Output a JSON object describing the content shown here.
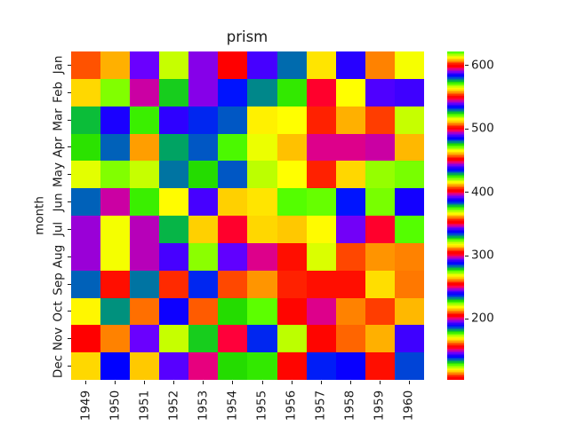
{
  "figure": {
    "background": "#ffffff",
    "text_color": "#1a1a1a"
  },
  "chart_data": {
    "type": "heatmap",
    "title": "prism",
    "xlabel": "",
    "ylabel": "month",
    "colormap": "prism",
    "grid": false,
    "vmin": 104,
    "vmax": 622,
    "rows": [
      "Jan",
      "Feb",
      "Mar",
      "Apr",
      "May",
      "Jun",
      "Jul",
      "Aug",
      "Sep",
      "Oct",
      "Nov",
      "Dec"
    ],
    "columns": [
      "1949",
      "1950",
      "1951",
      "1952",
      "1953",
      "1954",
      "1955",
      "1956",
      "1957",
      "1958",
      "1959",
      "1960"
    ],
    "values": [
      [
        112,
        115,
        145,
        171,
        196,
        204,
        242,
        284,
        315,
        340,
        360,
        417
      ],
      [
        118,
        126,
        150,
        180,
        196,
        188,
        233,
        277,
        301,
        318,
        342,
        391
      ],
      [
        132,
        141,
        178,
        193,
        236,
        235,
        267,
        317,
        356,
        362,
        406,
        419
      ],
      [
        129,
        135,
        163,
        181,
        235,
        227,
        269,
        313,
        348,
        348,
        396,
        461
      ],
      [
        121,
        125,
        172,
        183,
        229,
        234,
        270,
        318,
        355,
        363,
        420,
        472
      ],
      [
        135,
        149,
        178,
        218,
        243,
        264,
        315,
        374,
        422,
        435,
        472,
        535
      ],
      [
        148,
        170,
        199,
        230,
        264,
        302,
        364,
        413,
        465,
        491,
        548,
        622
      ],
      [
        148,
        170,
        199,
        242,
        272,
        293,
        347,
        405,
        467,
        505,
        559,
        606
      ],
      [
        136,
        158,
        184,
        209,
        237,
        259,
        312,
        355,
        404,
        404,
        463,
        508
      ],
      [
        119,
        133,
        162,
        191,
        211,
        229,
        274,
        306,
        347,
        359,
        407,
        461
      ],
      [
        104,
        114,
        146,
        172,
        180,
        203,
        237,
        271,
        305,
        310,
        362,
        390
      ],
      [
        118,
        140,
        166,
        194,
        201,
        229,
        278,
        306,
        336,
        337,
        405,
        432
      ]
    ],
    "colorbar": {
      "position": "right",
      "ticks": [
        200,
        300,
        400,
        500,
        600
      ]
    }
  }
}
